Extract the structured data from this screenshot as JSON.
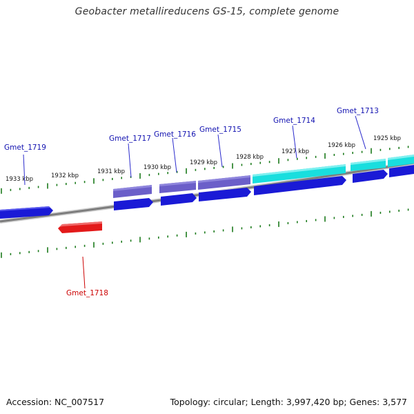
{
  "title": "Geobacter metallireducens GS-15, complete genome",
  "footer": {
    "accession": "Accession: NC_007517",
    "topology": "Topology: circular; Length: 3,997,420 bp; Genes: 3,577"
  },
  "colors": {
    "backbone": "#8a8a8a",
    "tick": "#1b7a1b",
    "gene_forward": "#1a1ad6",
    "gene_reverse": "#e31a1a",
    "feature_purple": "#6b5fc9",
    "feature_cyan": "#19dede",
    "label_forward": "#1010b0",
    "label_reverse": "#cc0000"
  },
  "kbp_labels": [
    "1933 kbp",
    "1932 kbp",
    "1931 kbp",
    "1930 kbp",
    "1929 kbp",
    "1928 kbp",
    "1927 kbp",
    "1926 kbp",
    "1925 kbp"
  ],
  "genes": [
    {
      "name": "Gmet_1719",
      "strand": "forward"
    },
    {
      "name": "Gmet_1718",
      "strand": "reverse"
    },
    {
      "name": "Gmet_1717",
      "strand": "forward"
    },
    {
      "name": "Gmet_1716",
      "strand": "forward"
    },
    {
      "name": "Gmet_1715",
      "strand": "forward"
    },
    {
      "name": "Gmet_1714",
      "strand": "forward"
    },
    {
      "name": "Gmet_1713",
      "strand": "forward"
    }
  ]
}
